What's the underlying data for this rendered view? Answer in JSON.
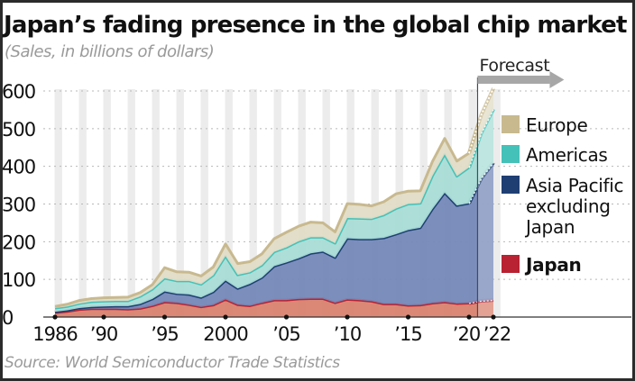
{
  "chart_data": {
    "type": "area",
    "stacked": true,
    "title": "Japan’s fading presence in the global chip market",
    "subtitle": "(Sales, in billions of dollars)",
    "source": "Source: World Semiconductor Trade Statistics",
    "xlabel": "",
    "ylabel": "",
    "ylim": [
      0,
      600
    ],
    "yticks": [
      0,
      100,
      200,
      300,
      400,
      500,
      600
    ],
    "ytick_labels": [
      "0",
      "100",
      "200",
      "300",
      "400",
      "500",
      "600"
    ],
    "x": [
      1986,
      1987,
      1988,
      1989,
      1990,
      1991,
      1992,
      1993,
      1994,
      1995,
      1996,
      1997,
      1998,
      1999,
      2000,
      2001,
      2002,
      2003,
      2004,
      2005,
      2006,
      2007,
      2008,
      2009,
      2010,
      2011,
      2012,
      2013,
      2014,
      2015,
      2016,
      2017,
      2018,
      2019,
      2020,
      2021,
      2022
    ],
    "xticks": [
      1986,
      1990,
      1995,
      2000,
      2005,
      2010,
      2015,
      2020,
      2022
    ],
    "xtick_labels": [
      "1986",
      "’90",
      "’95",
      "2000",
      "’05",
      "’10",
      "’15",
      "’20",
      "’22"
    ],
    "forecast_start": 2020.7,
    "forecast_years": [
      2021,
      2022
    ],
    "forecast_label": "Forecast",
    "grid": "horizontal-dotted",
    "legend_position": "right",
    "series": [
      {
        "name": "Japan",
        "bold": true,
        "color": "#b82232",
        "fill": "#d9826f",
        "values": [
          12,
          15,
          20,
          22,
          22,
          22,
          21,
          23,
          30,
          40,
          38,
          33,
          27,
          32,
          47,
          33,
          30,
          38,
          45,
          45,
          48,
          49,
          49,
          38,
          47,
          45,
          42,
          35,
          35,
          31,
          32,
          37,
          40,
          36,
          37,
          43,
          45
        ]
      },
      {
        "name": "Asia Pacific excluding Japan",
        "color": "#1f3f73",
        "fill": "#7589b8",
        "values": [
          2,
          3,
          4,
          5,
          6,
          7,
          8,
          12,
          18,
          28,
          24,
          27,
          25,
          35,
          50,
          43,
          58,
          67,
          90,
          100,
          108,
          120,
          125,
          120,
          162,
          162,
          165,
          175,
          185,
          200,
          205,
          250,
          290,
          260,
          265,
          325,
          365
        ]
      },
      {
        "name": "Americas",
        "color": "#44c1b8",
        "fill": "#a9ddd6",
        "values": [
          10,
          10,
          12,
          14,
          14,
          14,
          14,
          20,
          26,
          35,
          34,
          36,
          35,
          44,
          65,
          36,
          31,
          33,
          38,
          40,
          45,
          43,
          38,
          38,
          54,
          55,
          54,
          61,
          68,
          69,
          65,
          88,
          102,
          78,
          95,
          120,
          142
        ]
      },
      {
        "name": "Europe",
        "color": "#c8b98f",
        "fill": "#e2dcc6",
        "values": [
          4,
          6,
          8,
          8,
          9,
          9,
          10,
          10,
          12,
          28,
          24,
          23,
          22,
          22,
          32,
          30,
          28,
          30,
          35,
          40,
          40,
          40,
          38,
          30,
          38,
          37,
          34,
          35,
          39,
          34,
          33,
          38,
          42,
          40,
          38,
          48,
          55
        ]
      }
    ]
  }
}
